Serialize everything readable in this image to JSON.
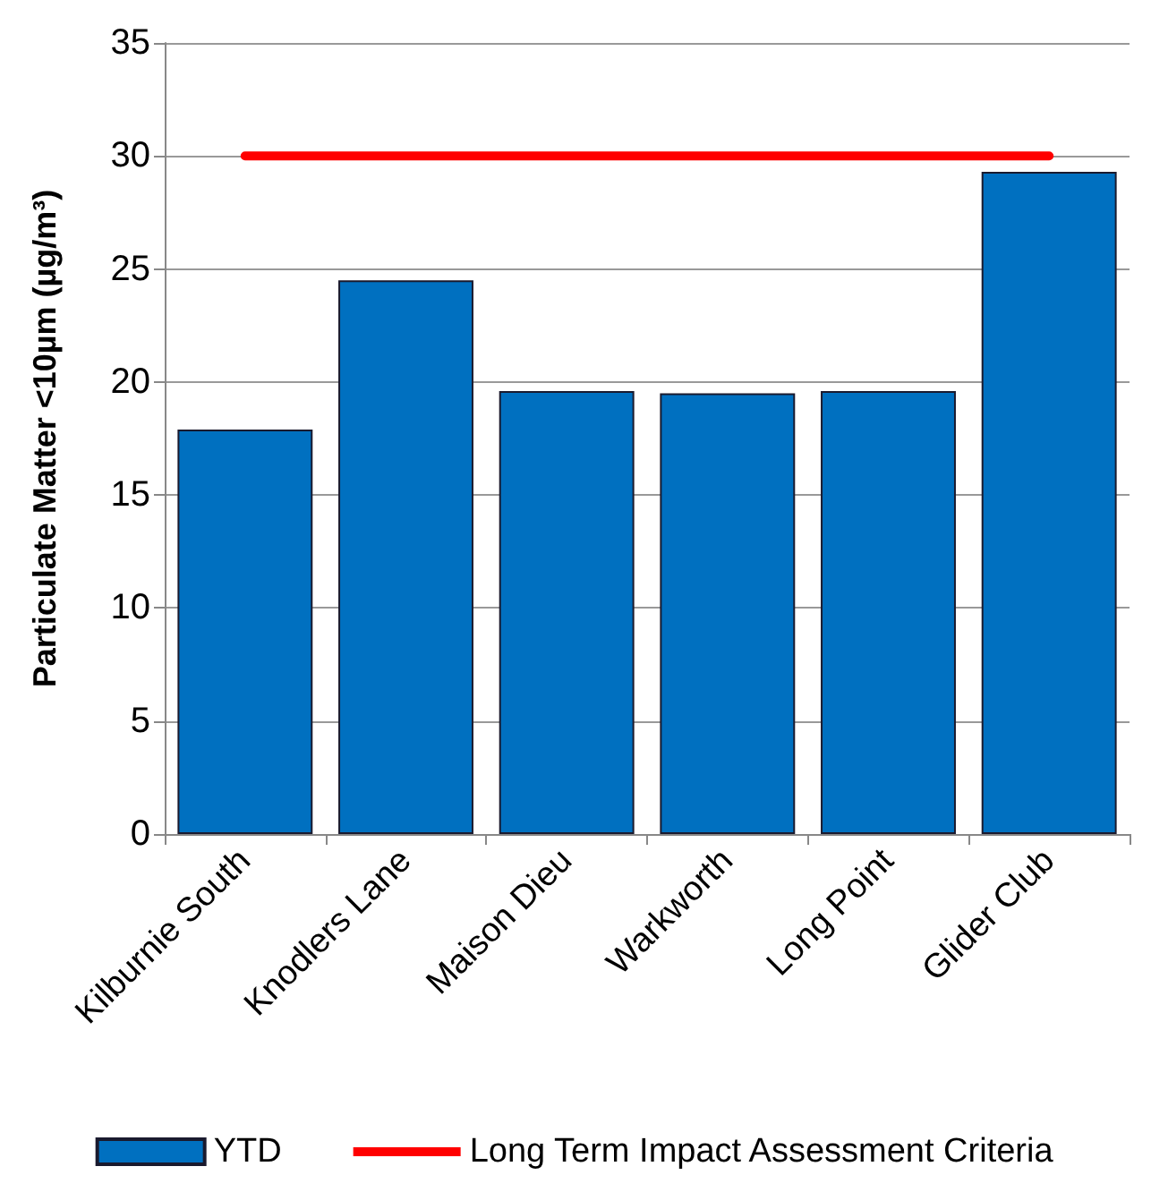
{
  "chart_data": {
    "type": "bar",
    "ylabel": "Particulate Matter <10µm (µg/m³)",
    "categories": [
      "Kilburnie South",
      "Knodlers Lane",
      "Maison Dieu",
      "Warkworth",
      "Long Point",
      "Glider Club"
    ],
    "series": [
      {
        "name": "YTD",
        "color": "#0070c0",
        "values": [
          17.9,
          24.5,
          19.6,
          19.5,
          19.6,
          29.3
        ]
      },
      {
        "name": "Long Term Impact Assessment Criteria",
        "type": "line",
        "color": "#ff0000",
        "marker": "none",
        "values": [
          30,
          30,
          30,
          30,
          30,
          30
        ]
      }
    ],
    "ylim": [
      0,
      35
    ],
    "yticks": [
      0,
      5,
      10,
      15,
      20,
      25,
      30,
      35
    ],
    "grid": "y",
    "legend": "bottom"
  }
}
